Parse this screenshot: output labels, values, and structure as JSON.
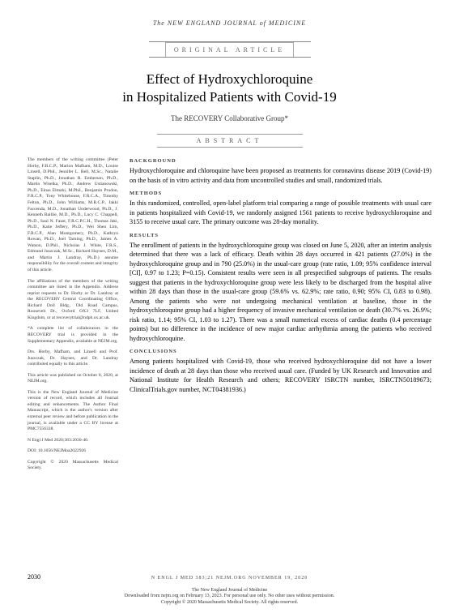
{
  "journal": {
    "header_line": "The NEW ENGLAND JOURNAL of MEDICINE"
  },
  "article_type": "ORIGINAL ARTICLE",
  "title_line1": "Effect of Hydroxychloroquine",
  "title_line2": "in Hospitalized Patients with Covid-19",
  "authors": "The RECOVERY Collaborative Group*",
  "abstract_label": "ABSTRACT",
  "sidebar": {
    "p1": "The members of the writing committee (Peter Horby, F.R.C.P., Marion Mafham, M.D., Louise Linsell, D.Phil., Jennifer L. Bell, M.Sc., Natalie Staplin, Ph.D., Jonathan R. Emberson, Ph.D., Martin Wiselka, Ph.D., Andrew Ustianowski, Ph.D., Einas Elmahi, M.Phil., Benjamin Prudon, F.R.C.P., Tony Whitehouse, F.R.C.A., Timothy Felton, Ph.D., John Williams, M.R.C.P., Jakki Faccenda, M.D., Jonathan Underwood, Ph.D., J. Kenneth Baillie, M.D., Ph.D., Lucy C. Chappell, Ph.D., Saul N. Faust, F.R.C.P.C.H., Thomas Jaki, Ph.D., Katie Jeffery, Ph.D., Wei Shen Lim, F.R.C.P., Alan Montgomery, Ph.D., Kathryn Rowan, Ph.D., Joel Tarning, Ph.D., James A. Watson, D.Phil., Nicholas J. White, F.R.S., Edmund Juszczak, M.Sc., Richard Haynes, D.M., and Martin J. Landray, Ph.D.) assume responsibility for the overall content and integrity of this article.",
    "p2": "The affiliations of the members of the writing committee are listed in the Appendix. Address reprint requests to Dr. Horby or Dr. Landray at the RECOVERY Central Coordinating Office, Richard Doll Bldg., Old Road Campus, Roosevelt Dr., Oxford OX3 7LF, United Kingdom, or at recoverytrial@ndph.ox.ac.uk.",
    "p3": "*A complete list of collaborators in the RECOVERY trial is provided in the Supplementary Appendix, available at NEJM.org.",
    "p4": "Drs. Horby, Mafham, and Linsell and Prof. Juszczak, Dr. Haynes, and Dr. Landray contributed equally to this article.",
    "p5": "This article was published on October 8, 2020, at NEJM.org.",
    "p6": "This is the New England Journal of Medicine version of record, which includes all Journal editing and enhancements. The Author Final Manuscript, which is the author's version after external peer review and before publication in the journal, is available under a CC BY license at PMC7556338.",
    "p7": "N Engl J Med 2020;383:2030-40.",
    "p8": "DOI: 10.1056/NEJMoa2022926",
    "p9": "Copyright © 2020 Massachusetts Medical Society."
  },
  "sections": {
    "background": {
      "head": "BACKGROUND",
      "text": "Hydroxychloroquine and chloroquine have been proposed as treatments for coronavirus disease 2019 (Covid-19) on the basis of in vitro activity and data from uncontrolled studies and small, randomized trials."
    },
    "methods": {
      "head": "METHODS",
      "text": "In this randomized, controlled, open-label platform trial comparing a range of possible treatments with usual care in patients hospitalized with Covid-19, we randomly assigned 1561 patients to receive hydroxychloroquine and 3155 to receive usual care. The primary outcome was 28-day mortality."
    },
    "results": {
      "head": "RESULTS",
      "text": "The enrollment of patients in the hydroxychloroquine group was closed on June 5, 2020, after an interim analysis determined that there was a lack of efficacy. Death within 28 days occurred in 421 patients (27.0%) in the hydroxychloroquine group and in 790 (25.0%) in the usual-care group (rate ratio, 1.09; 95% confidence interval [CI], 0.97 to 1.23; P=0.15). Consistent results were seen in all prespecified subgroups of patients. The results suggest that patients in the hydroxychloroquine group were less likely to be discharged from the hospital alive within 28 days than those in the usual-care group (59.6% vs. 62.9%; rate ratio, 0.90; 95% CI, 0.83 to 0.98). Among the patients who were not undergoing mechanical ventilation at baseline, those in the hydroxychloroquine group had a higher frequency of invasive mechanical ventilation or death (30.7% vs. 26.9%; risk ratio, 1.14; 95% CI, 1.03 to 1.27). There was a small numerical excess of cardiac deaths (0.4 percentage points) but no difference in the incidence of new major cardiac arrhythmia among the patients who received hydroxychloroquine."
    },
    "conclusions": {
      "head": "CONCLUSIONS",
      "text": "Among patients hospitalized with Covid-19, those who received hydroxychloroquine did not have a lower incidence of death at 28 days than those who received usual care. (Funded by UK Research and Innovation and National Institute for Health Research and others; RECOVERY ISRCTN number, ISRCTN50189673; ClinicalTrials.gov number, NCT04381936.)"
    }
  },
  "page_number": "2030",
  "footer_center": "N ENGL J MED 383;21   NEJM.ORG   NOVEMBER 19, 2020",
  "footer_bottom": {
    "l1": "The New England Journal of Medicine",
    "l2": "Downloaded from nejm.org on February 13, 2023. For personal use only. No other uses without permission.",
    "l3": "Copyright © 2020 Massachusetts Medical Society. All rights reserved."
  }
}
